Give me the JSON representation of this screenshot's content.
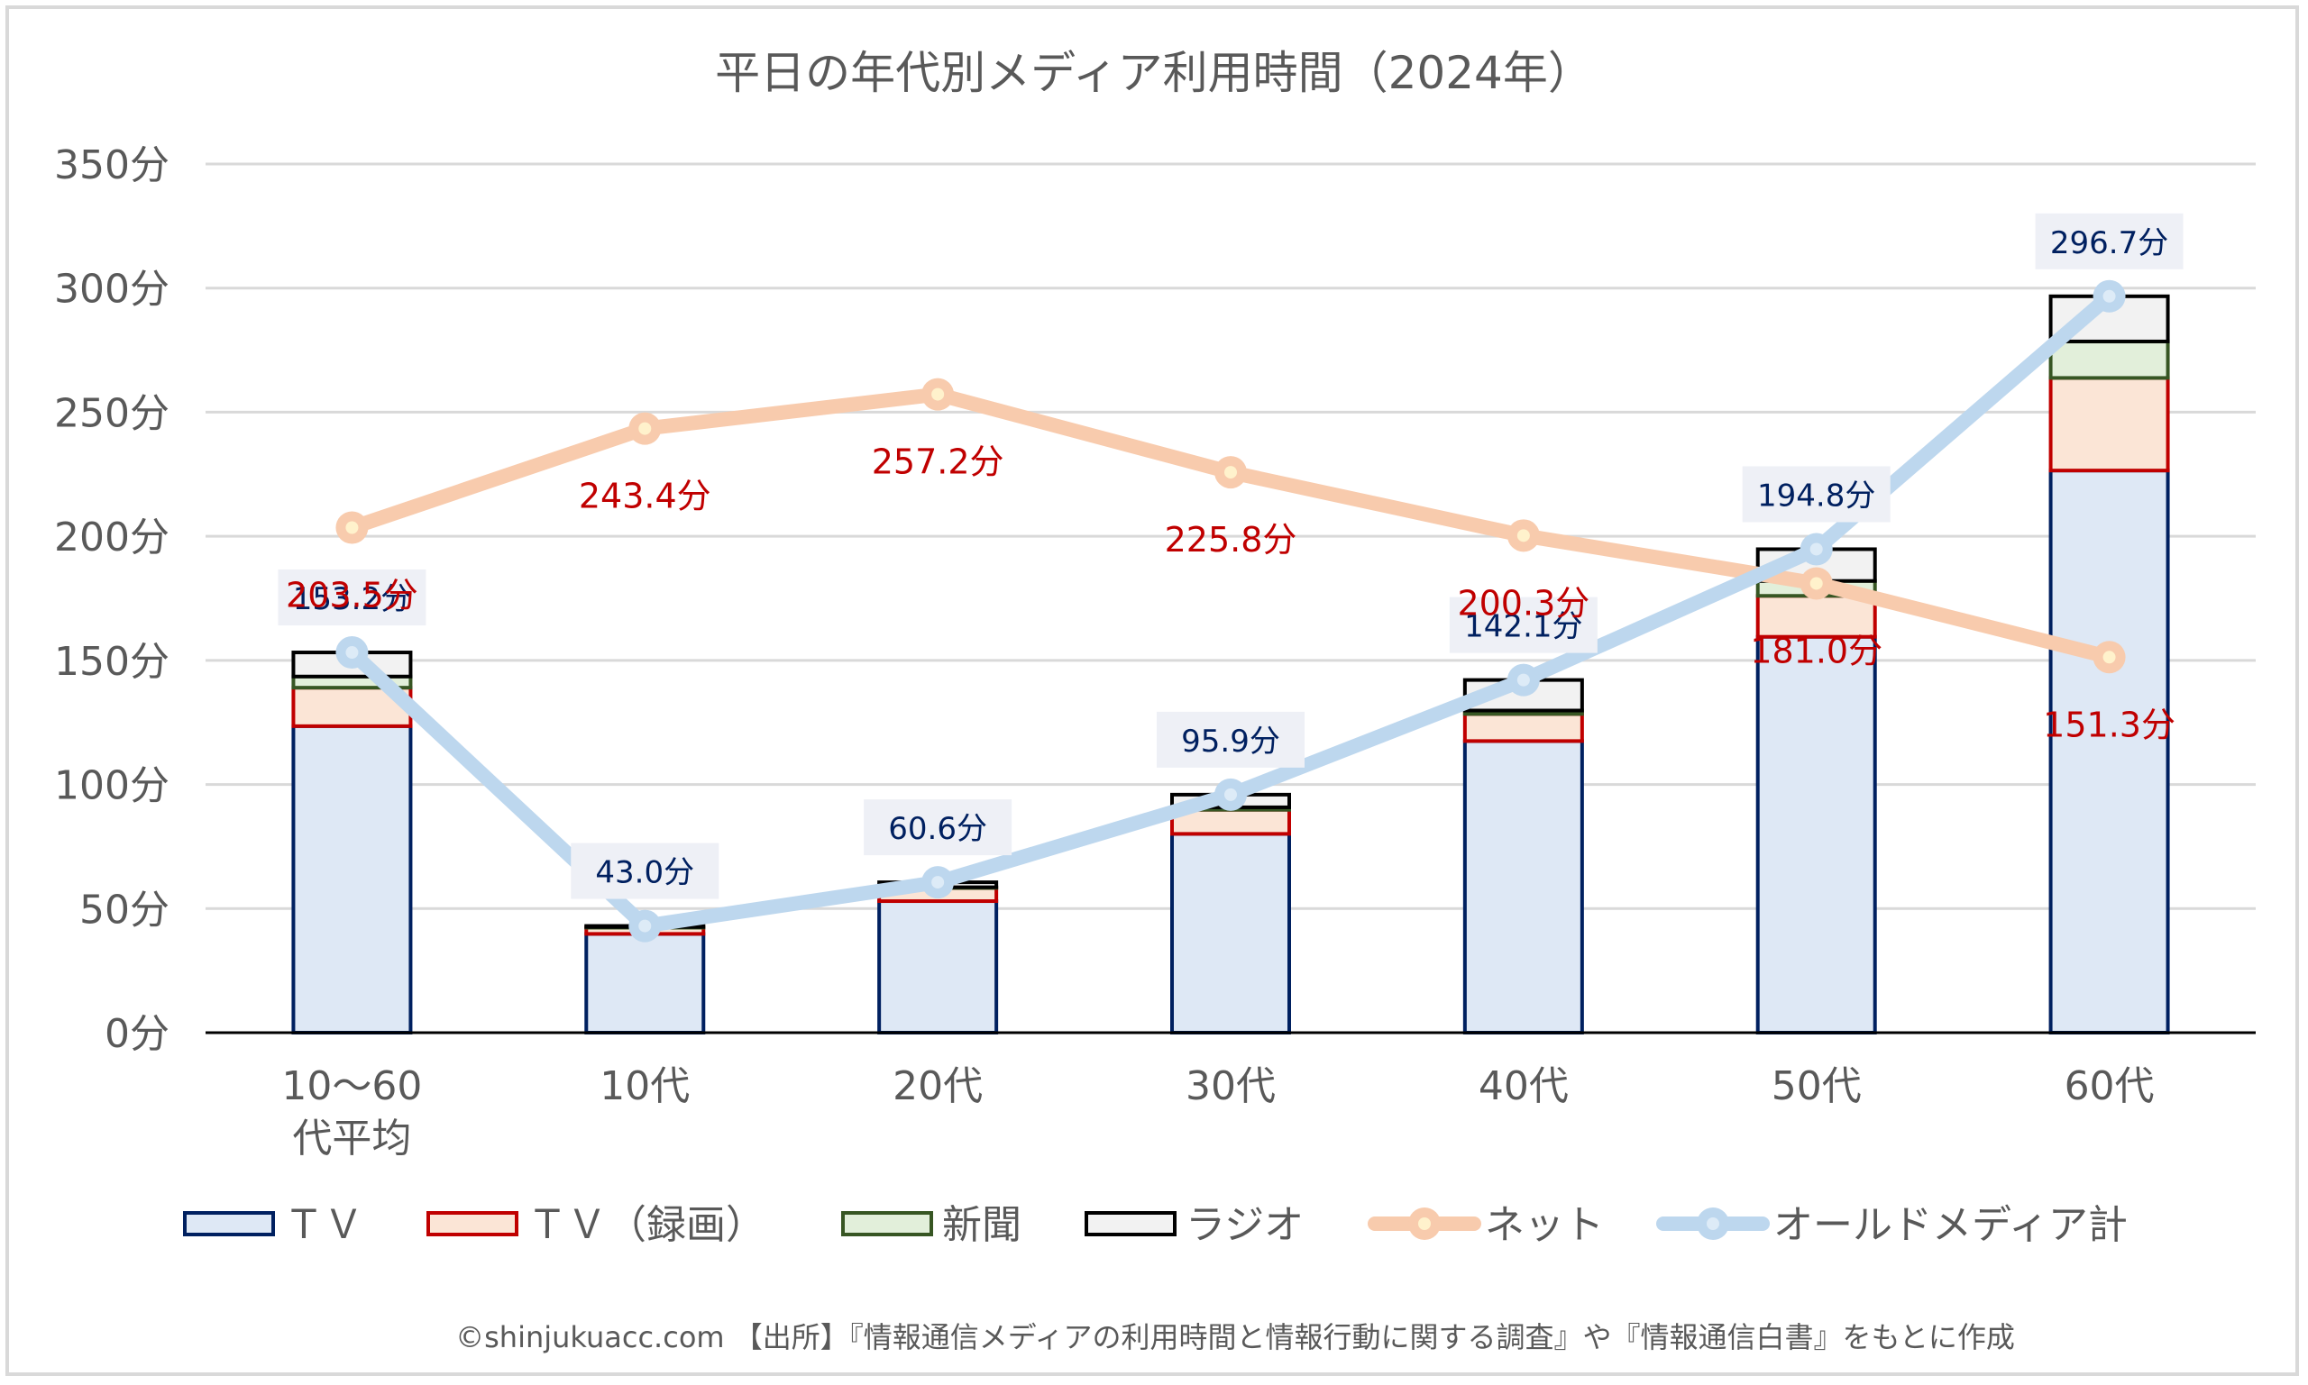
{
  "chart_data": {
    "type": "bar",
    "subtype": "stacked-bar-with-lines",
    "title": "平日の年代別メディア利用時間（2024年）",
    "xlabel": "",
    "ylabel": "",
    "ylim": [
      0,
      350
    ],
    "yticks": [
      0,
      50,
      100,
      150,
      200,
      250,
      300,
      350
    ],
    "ytick_suffix": "分",
    "ytick_labels": [
      "0分",
      "50分",
      "100分",
      "150分",
      "200分",
      "250分",
      "300分",
      "350分"
    ],
    "grid": true,
    "legend_position": "bottom",
    "categories": [
      [
        "10～60",
        "代平均"
      ],
      [
        "10代"
      ],
      [
        "20代"
      ],
      [
        "30代"
      ],
      [
        "40代"
      ],
      [
        "50代"
      ],
      [
        "60代"
      ]
    ],
    "series": [
      {
        "name": "ＴＶ",
        "kind": "bar",
        "fill": "#DEE8F5",
        "stroke": "#002060",
        "values": [
          123.5,
          39.8,
          53.0,
          80.1,
          117.5,
          159.5,
          226.5
        ]
      },
      {
        "name": "ＴＶ（録画）",
        "kind": "bar",
        "fill": "#FBE5D6",
        "stroke": "#C00000",
        "values": [
          15.5,
          2.5,
          5.3,
          9.7,
          10.9,
          16.5,
          37.3
        ]
      },
      {
        "name": "新聞",
        "kind": "bar",
        "fill": "#E2EFDA",
        "stroke": "#375623",
        "values": [
          4.5,
          0.3,
          0.3,
          1.0,
          1.4,
          6.0,
          14.7
        ]
      },
      {
        "name": "ラジオ",
        "kind": "bar",
        "fill": "#F2F2F2",
        "stroke": "#000000",
        "values": [
          9.7,
          0.4,
          2.0,
          5.1,
          12.3,
          12.8,
          18.2
        ]
      },
      {
        "name": "ネット",
        "kind": "line",
        "color": "#F8CBAD",
        "marker_inner": "#FFF2CC",
        "label_color": "#C00000",
        "values": [
          203.5,
          243.4,
          257.2,
          225.8,
          200.3,
          181.0,
          151.3
        ],
        "labels": [
          "203.5分",
          "243.4分",
          "257.2分",
          "225.8分",
          "200.3分",
          "181.0分",
          "151.3分"
        ]
      },
      {
        "name": "オールドメディア計",
        "kind": "line",
        "color": "#BDD7EE",
        "marker_inner": "#DDEBF7",
        "label_color": "#002060",
        "values": [
          153.2,
          43.0,
          60.6,
          95.9,
          142.1,
          194.8,
          296.7
        ],
        "labels": [
          "153.2分",
          "43.0分",
          "60.6分",
          "95.9分",
          "142.1分",
          "194.8分",
          "296.7分"
        ]
      }
    ]
  },
  "footer": "©shinjukuacc.com 【出所】『情報通信メディアの利用時間と情報行動に関する調査』や『情報通信白書』をもとに作成"
}
